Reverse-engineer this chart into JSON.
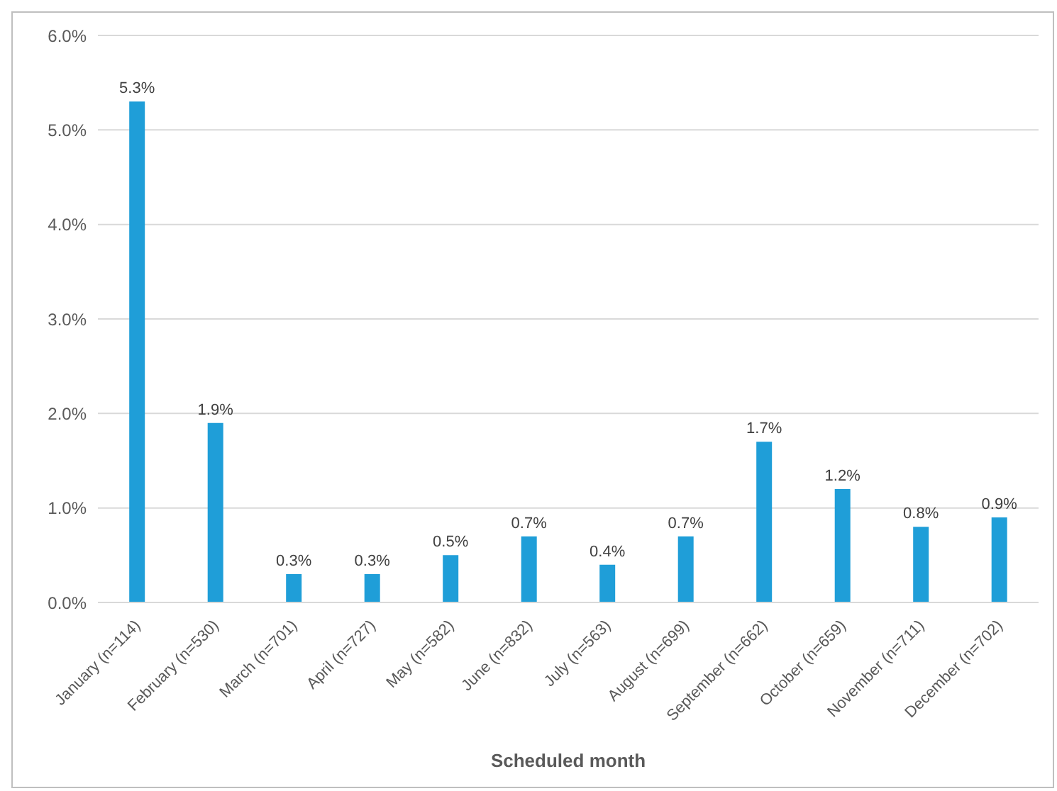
{
  "chart_data": {
    "type": "bar",
    "xlabel": "Scheduled month",
    "categories": [
      "January (n=114)",
      "February (n=530)",
      "March (n=701)",
      "April (n=727)",
      "May (n=582)",
      "June (n=832)",
      "July (n=563)",
      "August (n=699)",
      "September (n=662)",
      "October (n=659)",
      "November (n=711)",
      "December (n=702)"
    ],
    "values": [
      5.3,
      1.9,
      0.3,
      0.3,
      0.5,
      0.7,
      0.4,
      0.7,
      1.7,
      1.2,
      0.8,
      0.9
    ],
    "value_labels": [
      "5.3%",
      "1.9%",
      "0.3%",
      "0.3%",
      "0.5%",
      "0.7%",
      "0.4%",
      "0.7%",
      "1.7%",
      "1.2%",
      "0.8%",
      "0.9%"
    ],
    "color": "#1f9ed8",
    "ylim": [
      0,
      6
    ],
    "yticks": [
      {
        "value": 0,
        "label": "0.0%"
      },
      {
        "value": 1,
        "label": "1.0%"
      },
      {
        "value": 2,
        "label": "2.0%"
      },
      {
        "value": 3,
        "label": "3.0%"
      },
      {
        "value": 4,
        "label": "4.0%"
      },
      {
        "value": 5,
        "label": "5.0%"
      },
      {
        "value": 6,
        "label": "6.0%"
      }
    ],
    "grid": "y"
  }
}
